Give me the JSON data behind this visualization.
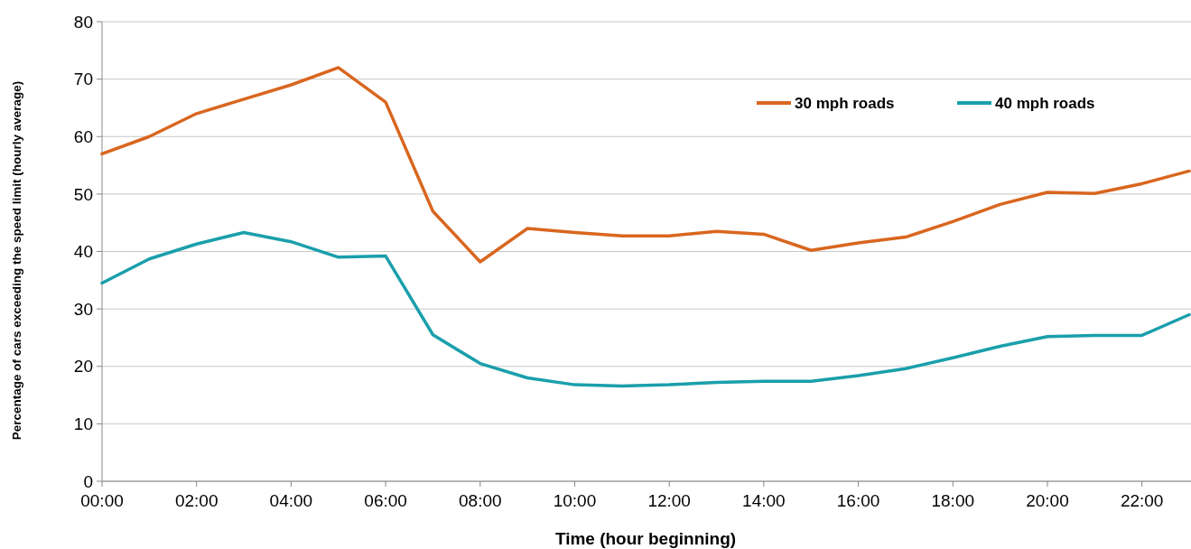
{
  "chart_data": {
    "type": "line",
    "xlabel": "Time (hour beginning)",
    "ylabel": "Percentage of cars exceeding the speed limit (hourly average)",
    "x": [
      0,
      1,
      2,
      3,
      4,
      5,
      6,
      7,
      8,
      9,
      10,
      11,
      12,
      13,
      14,
      15,
      16,
      17,
      18,
      19,
      20,
      21,
      22,
      23
    ],
    "series": [
      {
        "name": "30 mph roads",
        "color": "#d9661f",
        "values": [
          57,
          60,
          64,
          66.5,
          69,
          72,
          66,
          47,
          38.2,
          44,
          43.3,
          42.7,
          42.7,
          43.5,
          43,
          40.2,
          41.5,
          42.5,
          45.2,
          48.2,
          50.3,
          50.1,
          51.8,
          54
        ]
      },
      {
        "name": "40 mph roads",
        "color": "#1a9fab",
        "values": [
          34.5,
          38.7,
          41.3,
          43.3,
          41.7,
          39,
          39.2,
          25.5,
          20.5,
          18,
          16.8,
          16.6,
          16.8,
          17.2,
          17.4,
          17.4,
          18.4,
          19.6,
          21.5,
          23.5,
          25.2,
          25.4,
          25.4,
          29
        ]
      }
    ],
    "xlim": [
      0,
      23
    ],
    "xticks": [
      {
        "value": 0,
        "label": "00:00"
      },
      {
        "value": 2,
        "label": "02:00"
      },
      {
        "value": 4,
        "label": "04:00"
      },
      {
        "value": 6,
        "label": "06:00"
      },
      {
        "value": 8,
        "label": "08:00"
      },
      {
        "value": 10,
        "label": "10:00"
      },
      {
        "value": 12,
        "label": "12:00"
      },
      {
        "value": 14,
        "label": "14:00"
      },
      {
        "value": 16,
        "label": "16:00"
      },
      {
        "value": 18,
        "label": "18:00"
      },
      {
        "value": 20,
        "label": "20:00"
      },
      {
        "value": 22,
        "label": "22:00"
      }
    ],
    "ylim": [
      0,
      80
    ],
    "yticks": [
      0,
      10,
      20,
      30,
      40,
      50,
      60,
      70,
      80
    ],
    "grid": "y",
    "legend": "top right",
    "marker": "none",
    "line_style": "solid"
  }
}
